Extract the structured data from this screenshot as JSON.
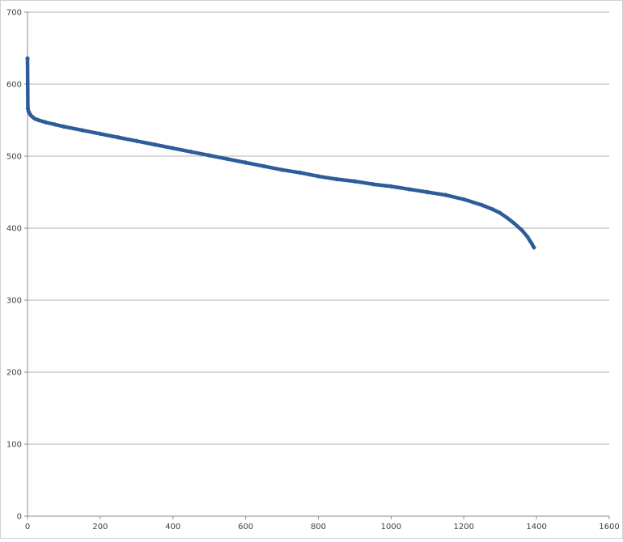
{
  "chart_data": {
    "type": "line",
    "title": "",
    "xlabel": "",
    "ylabel": "",
    "xlim": [
      0,
      1600
    ],
    "ylim": [
      0,
      700
    ],
    "x_ticks": [
      0,
      200,
      400,
      600,
      800,
      1000,
      1200,
      1400,
      1600
    ],
    "y_ticks": [
      0,
      100,
      200,
      300,
      400,
      500,
      600,
      700
    ],
    "grid": "horizontal",
    "legend": "none",
    "series": [
      {
        "color": "#2e5c98",
        "marker": "diamond",
        "points": [
          [
            0,
            636
          ],
          [
            1,
            566
          ],
          [
            3,
            562
          ],
          [
            6,
            559
          ],
          [
            10,
            556
          ],
          [
            15,
            554
          ],
          [
            20,
            552
          ],
          [
            30,
            550
          ],
          [
            50,
            547
          ],
          [
            75,
            544
          ],
          [
            100,
            541
          ],
          [
            150,
            536
          ],
          [
            200,
            531
          ],
          [
            250,
            526
          ],
          [
            300,
            521
          ],
          [
            350,
            516
          ],
          [
            400,
            511
          ],
          [
            450,
            506
          ],
          [
            500,
            501
          ],
          [
            550,
            496
          ],
          [
            600,
            491
          ],
          [
            650,
            486
          ],
          [
            700,
            481
          ],
          [
            750,
            477
          ],
          [
            800,
            472
          ],
          [
            850,
            468
          ],
          [
            900,
            465
          ],
          [
            950,
            461
          ],
          [
            1000,
            458
          ],
          [
            1050,
            454
          ],
          [
            1100,
            450
          ],
          [
            1150,
            446
          ],
          [
            1200,
            440
          ],
          [
            1250,
            432
          ],
          [
            1280,
            426
          ],
          [
            1300,
            421
          ],
          [
            1320,
            414
          ],
          [
            1340,
            406
          ],
          [
            1360,
            397
          ],
          [
            1375,
            388
          ],
          [
            1385,
            380
          ],
          [
            1393,
            373
          ]
        ]
      }
    ]
  }
}
